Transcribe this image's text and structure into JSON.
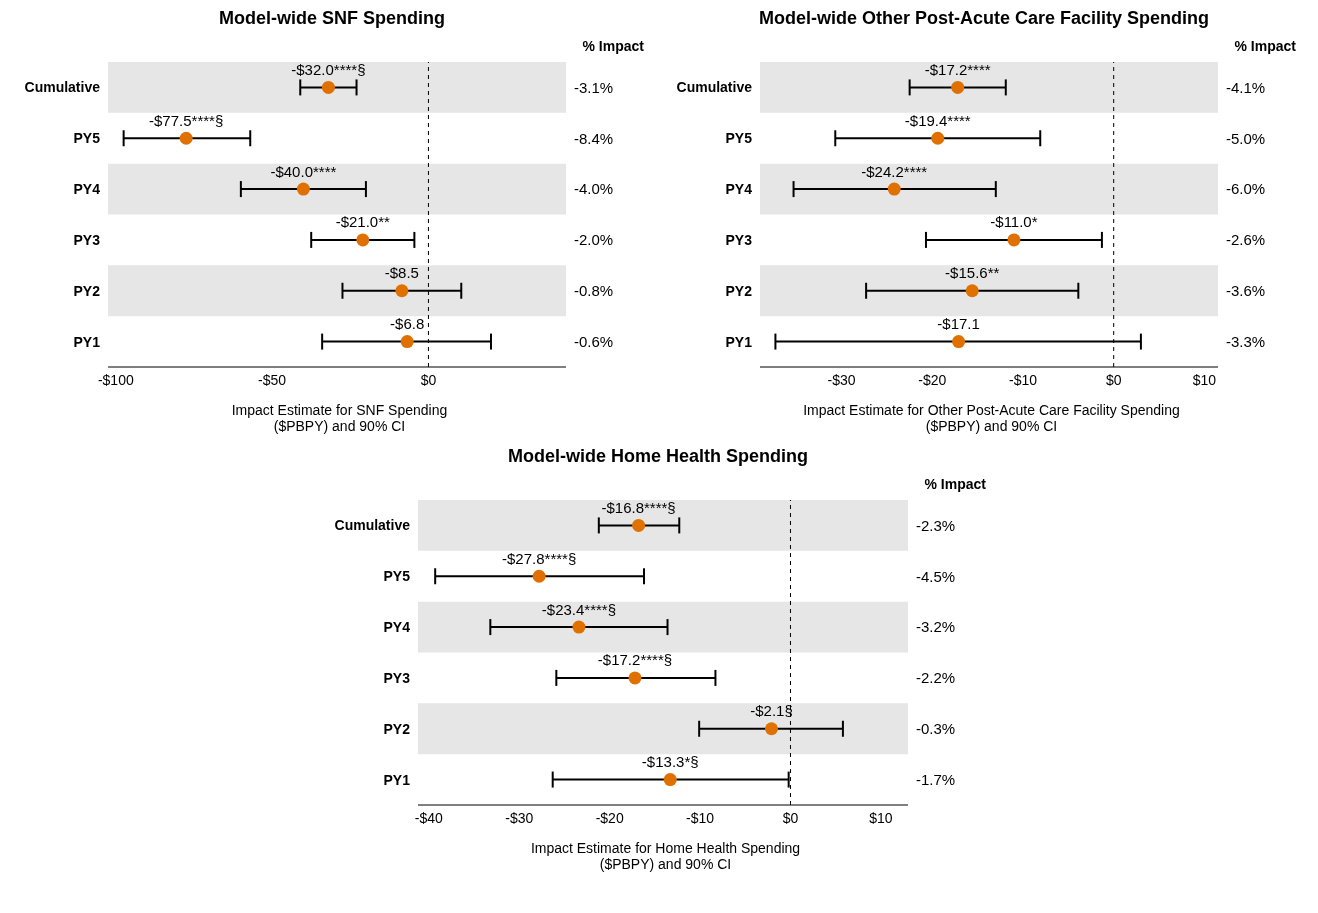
{
  "chart_data": [
    {
      "type": "scatter",
      "orientation": "horizontal",
      "title": "Model-wide SNF Spending",
      "xlabel": "Impact Estimate for SNF Spending\n($PBPY) and 90% CI",
      "categories": [
        "Cumulative",
        "PY5",
        "PY4",
        "PY3",
        "PY2",
        "PY1"
      ],
      "values": [
        -32.0,
        -77.5,
        -40.0,
        -21.0,
        -8.5,
        -6.8
      ],
      "errors": [
        [
          -41,
          -23
        ],
        [
          -97.5,
          -57
        ],
        [
          -60,
          -20
        ],
        [
          -37.5,
          -4.5
        ],
        [
          -27.5,
          10.5
        ],
        [
          -34,
          20
        ]
      ],
      "value_labels": [
        "-$32.0****§",
        "-$77.5****§",
        "-$40.0****",
        "-$21.0**",
        "-$8.5",
        "-$6.8"
      ],
      "color": "#e07000",
      "marker": "circle",
      "xlim": [
        -102.5,
        44
      ],
      "xticks": [
        {
          "value": -100,
          "label": "-$100"
        },
        {
          "value": -50,
          "label": "-$50"
        },
        {
          "value": 0,
          "label": "$0"
        }
      ],
      "ref_lines": [
        {
          "axis": "x",
          "value": 0,
          "line_style": "dashed"
        }
      ],
      "bands": [
        {
          "axis": "y",
          "from": "Cumulative",
          "to": "Cumulative",
          "color": "#e6e6e6"
        },
        {
          "axis": "y",
          "from": "PY4",
          "to": "PY4",
          "color": "#e6e6e6"
        },
        {
          "axis": "y",
          "from": "PY2",
          "to": "PY2",
          "color": "#e6e6e6"
        }
      ],
      "annotations": [
        "% Impact",
        "-3.1%",
        "-8.4%",
        "-4.0%",
        "-2.0%",
        "-0.8%",
        "-0.6%"
      ]
    },
    {
      "type": "scatter",
      "orientation": "horizontal",
      "title": "Model-wide Other Post-Acute Care Facility Spending",
      "xlabel": "Impact Estimate for Other Post-Acute Care Facility Spending\n($PBPY) and 90% CI",
      "categories": [
        "Cumulative",
        "PY5",
        "PY4",
        "PY3",
        "PY2",
        "PY1"
      ],
      "values": [
        -17.2,
        -19.4,
        -24.2,
        -11.0,
        -15.6,
        -17.1
      ],
      "errors": [
        [
          -22.5,
          -11.9
        ],
        [
          -30.7,
          -8.1
        ],
        [
          -35.3,
          -13
        ],
        [
          -20.7,
          -1.3
        ],
        [
          -27.3,
          -3.9
        ],
        [
          -37.3,
          3
        ]
      ],
      "value_labels": [
        "-$17.2****",
        "-$19.4****",
        "-$24.2****",
        "-$11.0*",
        "-$15.6**",
        "-$17.1"
      ],
      "color": "#e07000",
      "marker": "circle",
      "xlim": [
        -39,
        11.5
      ],
      "xticks": [
        {
          "value": -30,
          "label": "-$30"
        },
        {
          "value": -20,
          "label": "-$20"
        },
        {
          "value": -10,
          "label": "-$10"
        },
        {
          "value": 0,
          "label": "$0"
        },
        {
          "value": 10,
          "label": "$10"
        }
      ],
      "ref_lines": [
        {
          "axis": "x",
          "value": 0,
          "line_style": "dashed"
        }
      ],
      "bands": [
        {
          "axis": "y",
          "from": "Cumulative",
          "to": "Cumulative",
          "color": "#e6e6e6"
        },
        {
          "axis": "y",
          "from": "PY4",
          "to": "PY4",
          "color": "#e6e6e6"
        },
        {
          "axis": "y",
          "from": "PY2",
          "to": "PY2",
          "color": "#e6e6e6"
        }
      ],
      "annotations": [
        "% Impact",
        "-4.1%",
        "-5.0%",
        "-6.0%",
        "-2.6%",
        "-3.6%",
        "-3.3%"
      ]
    },
    {
      "type": "scatter",
      "orientation": "horizontal",
      "title": "Model-wide Home Health Spending",
      "xlabel": "Impact Estimate for Home Health Spending\n($PBPY) and 90% CI",
      "categories": [
        "Cumulative",
        "PY5",
        "PY4",
        "PY3",
        "PY2",
        "PY1"
      ],
      "values": [
        -16.8,
        -27.8,
        -23.4,
        -17.2,
        -2.1,
        -13.3
      ],
      "errors": [
        [
          -21.2,
          -12.3
        ],
        [
          -39.3,
          -16.2
        ],
        [
          -33.2,
          -13.6
        ],
        [
          -25.9,
          -8.3
        ],
        [
          -10.1,
          5.8
        ],
        [
          -26.3,
          -0.2
        ]
      ],
      "value_labels": [
        "-$16.8****§",
        "-$27.8****§",
        "-$23.4****§",
        "-$17.2****§",
        "-$2.1§",
        "-$13.3*§"
      ],
      "color": "#e07000",
      "marker": "circle",
      "xlim": [
        -41.2,
        13
      ],
      "xticks": [
        {
          "value": -40,
          "label": "-$40"
        },
        {
          "value": -30,
          "label": "-$30"
        },
        {
          "value": -20,
          "label": "-$20"
        },
        {
          "value": -10,
          "label": "-$10"
        },
        {
          "value": 0,
          "label": "$0"
        },
        {
          "value": 10,
          "label": "$10"
        }
      ],
      "ref_lines": [
        {
          "axis": "x",
          "value": 0,
          "line_style": "dashed"
        }
      ],
      "bands": [
        {
          "axis": "y",
          "from": "Cumulative",
          "to": "Cumulative",
          "color": "#e6e6e6"
        },
        {
          "axis": "y",
          "from": "PY4",
          "to": "PY4",
          "color": "#e6e6e6"
        },
        {
          "axis": "y",
          "from": "PY2",
          "to": "PY2",
          "color": "#e6e6e6"
        }
      ],
      "annotations": [
        "% Impact",
        "-2.3%",
        "-4.5%",
        "-3.2%",
        "-2.2%",
        "-0.3%",
        "-1.7%"
      ]
    }
  ]
}
